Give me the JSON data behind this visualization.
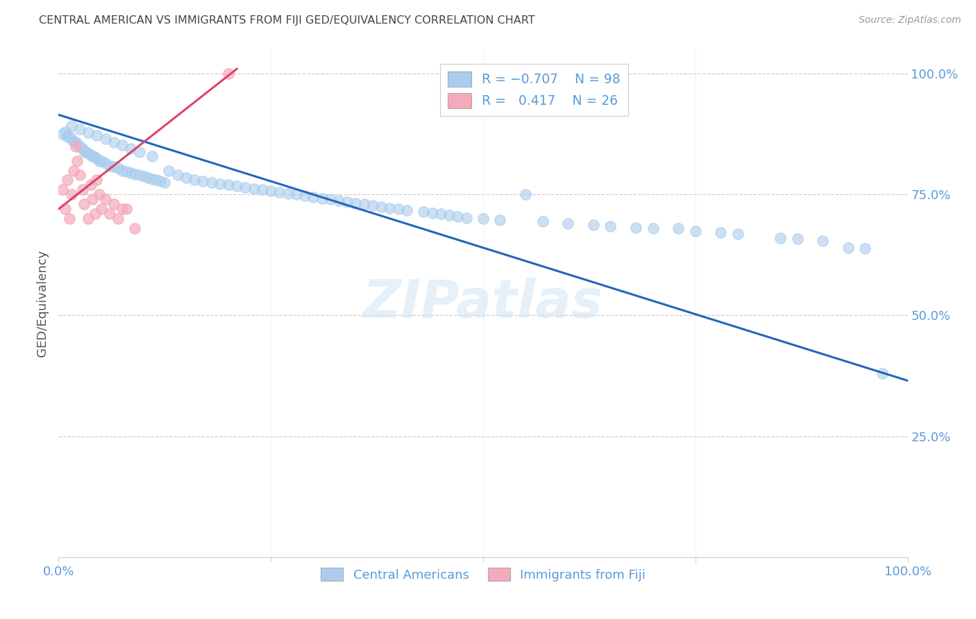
{
  "title": "CENTRAL AMERICAN VS IMMIGRANTS FROM FIJI GED/EQUIVALENCY CORRELATION CHART",
  "source": "Source: ZipAtlas.com",
  "ylabel": "GED/Equivalency",
  "watermark": "ZIPatlas",
  "blue_color": "#aaccee",
  "pink_color": "#f5aabb",
  "line_blue": "#2266bb",
  "line_pink": "#dd4466",
  "title_color": "#444444",
  "axis_label_color": "#5b9bd5",
  "grid_color": "#cccccc",
  "xlim": [
    0.0,
    1.0
  ],
  "ylim": [
    0.0,
    1.05
  ],
  "ytick_vals": [
    0.25,
    0.5,
    0.75,
    1.0
  ],
  "ytick_labels": [
    "25.0%",
    "50.0%",
    "75.0%",
    "100.0%"
  ],
  "xtick_vals": [
    0.0,
    0.25,
    0.5,
    0.75,
    1.0
  ],
  "xtick_labels": [
    "0.0%",
    "",
    "",
    "",
    "100.0%"
  ],
  "blue_line_x": [
    0.0,
    1.0
  ],
  "blue_line_y": [
    0.915,
    0.365
  ],
  "pink_line_x": [
    0.0,
    0.21
  ],
  "pink_line_y": [
    0.72,
    1.01
  ],
  "blue_x": [
    0.005,
    0.008,
    0.01,
    0.012,
    0.015,
    0.018,
    0.02,
    0.022,
    0.025,
    0.028,
    0.03,
    0.032,
    0.035,
    0.038,
    0.04,
    0.042,
    0.045,
    0.048,
    0.05,
    0.055,
    0.06,
    0.065,
    0.07,
    0.075,
    0.08,
    0.085,
    0.09,
    0.095,
    0.1,
    0.105,
    0.11,
    0.115,
    0.12,
    0.125,
    0.13,
    0.14,
    0.15,
    0.16,
    0.17,
    0.18,
    0.19,
    0.2,
    0.21,
    0.22,
    0.23,
    0.24,
    0.25,
    0.26,
    0.27,
    0.28,
    0.29,
    0.3,
    0.31,
    0.32,
    0.33,
    0.34,
    0.35,
    0.36,
    0.37,
    0.38,
    0.39,
    0.4,
    0.41,
    0.43,
    0.44,
    0.45,
    0.46,
    0.47,
    0.48,
    0.5,
    0.52,
    0.55,
    0.57,
    0.6,
    0.63,
    0.65,
    0.68,
    0.7,
    0.73,
    0.75,
    0.78,
    0.8,
    0.85,
    0.87,
    0.9,
    0.93,
    0.95,
    0.97,
    0.015,
    0.025,
    0.035,
    0.045,
    0.055,
    0.065,
    0.075,
    0.085,
    0.095,
    0.11
  ],
  "blue_y": [
    0.875,
    0.88,
    0.87,
    0.872,
    0.865,
    0.86,
    0.858,
    0.855,
    0.85,
    0.845,
    0.84,
    0.838,
    0.835,
    0.833,
    0.83,
    0.828,
    0.825,
    0.82,
    0.82,
    0.815,
    0.81,
    0.808,
    0.805,
    0.8,
    0.798,
    0.795,
    0.792,
    0.79,
    0.788,
    0.785,
    0.782,
    0.78,
    0.778,
    0.775,
    0.8,
    0.79,
    0.785,
    0.78,
    0.778,
    0.775,
    0.772,
    0.77,
    0.768,
    0.765,
    0.762,
    0.76,
    0.758,
    0.755,
    0.752,
    0.75,
    0.748,
    0.745,
    0.742,
    0.74,
    0.738,
    0.735,
    0.732,
    0.73,
    0.728,
    0.725,
    0.722,
    0.72,
    0.718,
    0.715,
    0.712,
    0.71,
    0.708,
    0.705,
    0.702,
    0.7,
    0.698,
    0.75,
    0.695,
    0.69,
    0.688,
    0.685,
    0.682,
    0.68,
    0.68,
    0.675,
    0.672,
    0.668,
    0.66,
    0.658,
    0.655,
    0.64,
    0.638,
    0.38,
    0.892,
    0.885,
    0.878,
    0.872,
    0.865,
    0.858,
    0.852,
    0.845,
    0.838,
    0.83
  ],
  "pink_x": [
    0.005,
    0.008,
    0.01,
    0.013,
    0.015,
    0.018,
    0.02,
    0.022,
    0.025,
    0.028,
    0.03,
    0.035,
    0.038,
    0.04,
    0.043,
    0.045,
    0.048,
    0.05,
    0.055,
    0.06,
    0.065,
    0.07,
    0.075,
    0.08,
    0.09,
    0.2
  ],
  "pink_y": [
    0.76,
    0.72,
    0.78,
    0.7,
    0.75,
    0.8,
    0.85,
    0.82,
    0.79,
    0.76,
    0.73,
    0.7,
    0.77,
    0.74,
    0.71,
    0.78,
    0.75,
    0.72,
    0.74,
    0.71,
    0.73,
    0.7,
    0.72,
    0.72,
    0.68,
    1.0
  ]
}
